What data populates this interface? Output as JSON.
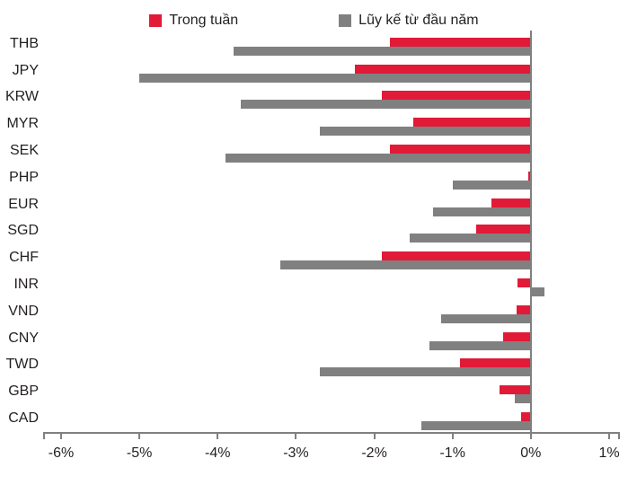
{
  "colors": {
    "week_red": "#E11A38",
    "ytd_gray": "#808080",
    "axis_gray": "#808080",
    "text": "#231F20",
    "background": "#ffffff"
  },
  "legend": [
    {
      "label": "Trong tuần",
      "color": "#E11A38",
      "icon": "square-swatch-icon"
    },
    {
      "label": "Lũy kế từ đầu năm",
      "color": "#808080",
      "icon": "square-swatch-icon"
    }
  ],
  "chart_data": {
    "type": "bar",
    "orientation": "horizontal",
    "title": "",
    "xlabel": "",
    "ylabel": "",
    "grid": false,
    "legend_position": "top",
    "xlim": [
      -6,
      1
    ],
    "x_ticks": [
      "-6%",
      "-5%",
      "-4%",
      "-3%",
      "-2%",
      "-1%",
      "0%",
      "1%"
    ],
    "categories": [
      "THB",
      "JPY",
      "KRW",
      "MYR",
      "SEK",
      "PHP",
      "EUR",
      "SGD",
      "CHF",
      "INR",
      "VND",
      "CNY",
      "TWD",
      "GBP",
      "CAD"
    ],
    "series": [
      {
        "name": "Trong tuần",
        "color": "#E11A38",
        "values": [
          -1.8,
          -2.25,
          -1.9,
          -1.5,
          -1.8,
          -0.03,
          -0.5,
          -0.7,
          -1.9,
          -0.17,
          -0.18,
          -0.35,
          -0.9,
          -0.4,
          -0.13
        ]
      },
      {
        "name": "Lũy kế từ đầu năm",
        "color": "#808080",
        "values": [
          -3.8,
          -5.0,
          -3.7,
          -2.7,
          -3.9,
          -1.0,
          -1.25,
          -1.55,
          -3.2,
          0.17,
          -1.15,
          -1.3,
          -2.7,
          -0.2,
          -1.4
        ]
      }
    ]
  }
}
